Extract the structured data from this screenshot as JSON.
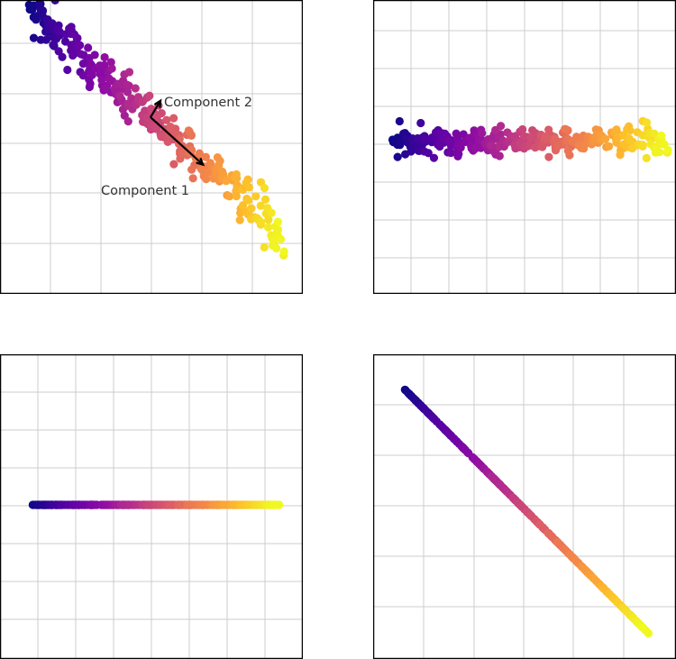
{
  "colors": {
    "grid": "#cccccc",
    "frame": "#000000",
    "colormap": "plasma"
  },
  "chart_data": [
    {
      "type": "scatter",
      "title": "",
      "xlabel": "",
      "ylabel": "",
      "grid": true,
      "colormap": "plasma",
      "xlim": [
        -3,
        3
      ],
      "ylim": [
        -3,
        3
      ],
      "annotations": [
        {
          "text": "Component 1",
          "arrow_from": [
            0,
            0
          ],
          "arrow_to": [
            1.05,
            -0.95
          ]
        },
        {
          "text": "Component 2",
          "arrow_from": [
            0,
            0
          ],
          "arrow_to": [
            0.2,
            0.33
          ]
        }
      ],
      "points": {
        "generator": "correlated",
        "n": 300,
        "seed": 7,
        "t_range": [
          -2.4,
          2.6
        ],
        "slope": -0.9,
        "spread": 0.22
      }
    },
    {
      "type": "scatter",
      "title": "",
      "xlabel": "",
      "ylabel": "",
      "grid": true,
      "colormap": "plasma",
      "xlim": [
        -3,
        3
      ],
      "ylim": [
        -3,
        3
      ],
      "points": {
        "generator": "rotated",
        "n": 300,
        "seed": 7,
        "t_range": [
          -2.4,
          2.6
        ],
        "y": 0,
        "spread": 0.13
      }
    },
    {
      "type": "scatter",
      "title": "",
      "xlabel": "",
      "ylabel": "",
      "grid": true,
      "colormap": "plasma",
      "xlim": [
        -3,
        3
      ],
      "ylim": [
        -3,
        3
      ],
      "points": {
        "generator": "flat",
        "n": 300,
        "seed": 7,
        "t_range": [
          -2.8,
          2.8
        ],
        "y": 0,
        "spread": 0
      }
    },
    {
      "type": "scatter",
      "title": "",
      "xlabel": "",
      "ylabel": "",
      "grid": true,
      "colormap": "plasma",
      "xlim": [
        -3,
        3
      ],
      "ylim": [
        -3,
        3
      ],
      "points": {
        "generator": "line",
        "n": 300,
        "seed": 7,
        "t_range": [
          -2.4,
          2.6
        ],
        "slope": -1.0,
        "spread": 0
      }
    }
  ]
}
